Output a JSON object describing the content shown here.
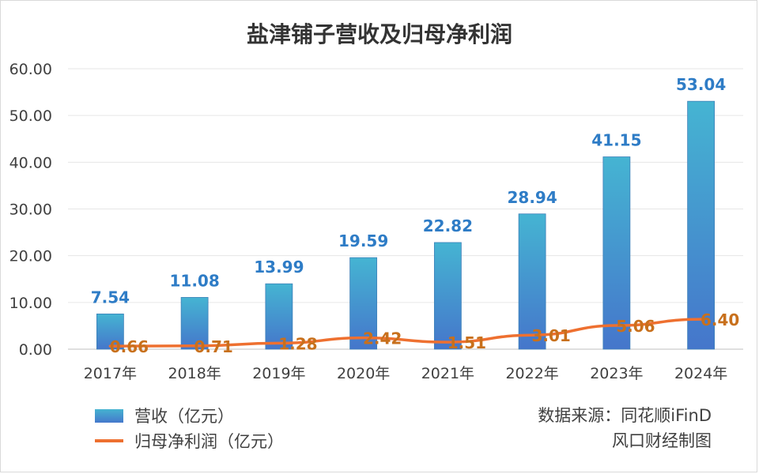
{
  "chart_data": {
    "type": "bar",
    "title": "盐津铺子营收及归母净利润",
    "categories": [
      "2017年",
      "2018年",
      "2019年",
      "2020年",
      "2021年",
      "2022年",
      "2023年",
      "2024年"
    ],
    "series": [
      {
        "name": "营收（亿元）",
        "type": "bar",
        "values": [
          7.54,
          11.08,
          13.99,
          19.59,
          22.82,
          28.94,
          41.15,
          53.04
        ],
        "labels": [
          "7.54",
          "11.08",
          "13.99",
          "19.59",
          "22.82",
          "28.94",
          "41.15",
          "53.04"
        ],
        "color": "#4a90d0",
        "label_color": "#2e7cc6"
      },
      {
        "name": "归母净利润（亿元）",
        "type": "line",
        "values": [
          0.66,
          0.71,
          1.28,
          2.42,
          1.51,
          3.01,
          5.06,
          6.4
        ],
        "labels": [
          "0.66",
          "0.71",
          "1.28",
          "2.42",
          "1.51",
          "3.01",
          "5.06",
          "6.40"
        ],
        "color": "#ee7030",
        "label_color": "#c8701c"
      }
    ],
    "ylim": [
      0,
      60
    ],
    "yticks": [
      "0.00",
      "10.00",
      "20.00",
      "30.00",
      "40.00",
      "50.00",
      "60.00"
    ],
    "grid": true,
    "legend": "bottom-left"
  },
  "source": {
    "line1": "数据来源：同花顺iFinD",
    "line2": "风口财经制图"
  }
}
